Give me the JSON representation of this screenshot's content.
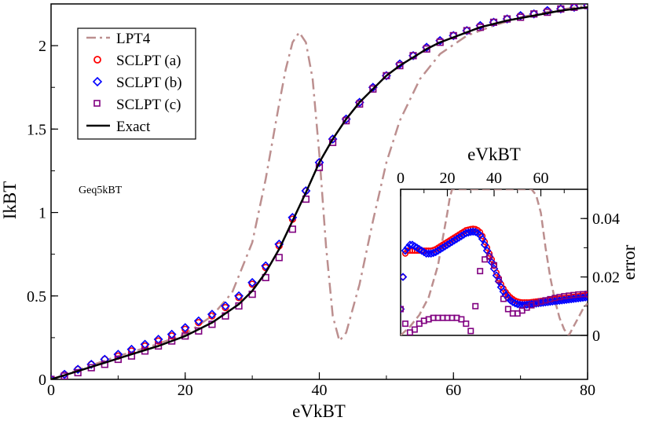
{
  "chart_data": [
    {
      "type": "line",
      "title": "",
      "xlabel": "eVkBT",
      "ylabel": "IkBT",
      "xlim": [
        0,
        80
      ],
      "ylim": [
        0,
        2.25
      ],
      "xticks": [
        "0",
        "20",
        "40",
        "60",
        "80"
      ],
      "yticks": [
        "0",
        "0.5",
        "1",
        "1.5",
        "2"
      ],
      "annotation": "Geq5kBT",
      "legend_position": "top-left",
      "series": [
        {
          "name": "LPT4",
          "style": "dashed",
          "color": "#bc8f8f",
          "x": [
            0,
            5,
            10,
            15,
            20,
            24,
            27,
            30,
            32,
            34,
            35,
            36,
            37,
            38,
            39,
            40,
            41,
            42,
            43,
            44,
            46,
            48,
            50,
            52,
            55,
            58,
            62,
            66,
            70,
            75,
            80
          ],
          "y": [
            0,
            0.07,
            0.14,
            0.2,
            0.27,
            0.38,
            0.52,
            0.82,
            1.2,
            1.65,
            1.86,
            2.02,
            2.08,
            2.02,
            1.8,
            1.35,
            0.8,
            0.38,
            0.23,
            0.28,
            0.57,
            0.95,
            1.3,
            1.55,
            1.8,
            1.95,
            2.06,
            2.12,
            2.17,
            2.21,
            2.24
          ]
        },
        {
          "name": "SCLPT (a)",
          "style": "circle",
          "color": "#ff0000",
          "x": [
            0,
            2,
            4,
            6,
            8,
            10,
            12,
            14,
            16,
            18,
            20,
            22,
            24,
            26,
            28,
            30,
            32,
            34,
            36,
            38,
            40,
            42,
            44,
            46,
            48,
            50,
            52,
            54,
            56,
            58,
            60,
            62,
            64,
            66,
            68,
            70,
            72,
            74,
            76,
            78,
            80
          ],
          "y": [
            0,
            0.03,
            0.06,
            0.09,
            0.12,
            0.14,
            0.17,
            0.2,
            0.23,
            0.26,
            0.3,
            0.34,
            0.38,
            0.43,
            0.49,
            0.57,
            0.67,
            0.8,
            0.96,
            1.13,
            1.3,
            1.44,
            1.56,
            1.66,
            1.75,
            1.82,
            1.89,
            1.94,
            1.99,
            2.03,
            2.06,
            2.09,
            2.12,
            2.14,
            2.16,
            2.18,
            2.19,
            2.21,
            2.22,
            2.23,
            2.24
          ]
        },
        {
          "name": "SCLPT (b)",
          "style": "diamond",
          "color": "#0000ff",
          "x": [
            0,
            2,
            4,
            6,
            8,
            10,
            12,
            14,
            16,
            18,
            20,
            22,
            24,
            26,
            28,
            30,
            32,
            34,
            36,
            38,
            40,
            42,
            44,
            46,
            48,
            50,
            52,
            54,
            56,
            58,
            60,
            62,
            64,
            66,
            68,
            70,
            72,
            74,
            76,
            78,
            80
          ],
          "y": [
            0,
            0.03,
            0.06,
            0.09,
            0.12,
            0.15,
            0.18,
            0.21,
            0.24,
            0.27,
            0.31,
            0.35,
            0.39,
            0.44,
            0.5,
            0.58,
            0.68,
            0.81,
            0.97,
            1.13,
            1.3,
            1.44,
            1.56,
            1.66,
            1.75,
            1.82,
            1.89,
            1.94,
            1.99,
            2.03,
            2.06,
            2.09,
            2.12,
            2.14,
            2.16,
            2.18,
            2.19,
            2.21,
            2.22,
            2.23,
            2.24
          ]
        },
        {
          "name": "SCLPT (c)",
          "style": "square",
          "color": "#800080",
          "x": [
            0,
            2,
            4,
            6,
            8,
            10,
            12,
            14,
            16,
            18,
            20,
            22,
            24,
            26,
            28,
            30,
            32,
            34,
            36,
            38,
            40,
            42,
            44,
            46,
            48,
            50,
            52,
            54,
            56,
            58,
            60,
            62,
            64,
            66,
            68,
            70,
            72,
            74,
            76,
            78,
            80
          ],
          "y": [
            0,
            0.02,
            0.04,
            0.07,
            0.09,
            0.12,
            0.14,
            0.17,
            0.2,
            0.23,
            0.26,
            0.29,
            0.33,
            0.38,
            0.44,
            0.51,
            0.61,
            0.73,
            0.9,
            1.08,
            1.27,
            1.42,
            1.55,
            1.65,
            1.74,
            1.82,
            1.88,
            1.94,
            1.98,
            2.02,
            2.06,
            2.09,
            2.11,
            2.14,
            2.16,
            2.17,
            2.19,
            2.2,
            2.22,
            2.23,
            2.24
          ]
        },
        {
          "name": "Exact",
          "style": "solid",
          "color": "#000000",
          "x": [
            0,
            4,
            8,
            12,
            16,
            20,
            24,
            28,
            30,
            32,
            34,
            36,
            38,
            40,
            42,
            44,
            46,
            48,
            50,
            52,
            54,
            56,
            58,
            60,
            64,
            68,
            72,
            76,
            80
          ],
          "y": [
            0,
            0.05,
            0.1,
            0.15,
            0.2,
            0.26,
            0.34,
            0.45,
            0.53,
            0.64,
            0.78,
            0.95,
            1.12,
            1.3,
            1.44,
            1.56,
            1.66,
            1.74,
            1.82,
            1.88,
            1.93,
            1.98,
            2.02,
            2.05,
            2.11,
            2.15,
            2.18,
            2.21,
            2.23
          ]
        }
      ]
    },
    {
      "type": "scatter",
      "title": "",
      "xlabel": "eVkBT",
      "ylabel": "error",
      "xlim": [
        0,
        80
      ],
      "ylim": [
        0,
        0.05
      ],
      "xticks": [
        "0",
        "20",
        "40",
        "60"
      ],
      "yticks": [
        "0",
        "0.02",
        "0.04"
      ],
      "series": [
        {
          "name": "LPT4",
          "style": "dashed",
          "color": "#bc8f8f",
          "x": [
            0,
            4,
            8,
            12,
            16,
            18,
            20,
            21,
            22,
            24,
            28,
            34,
            40,
            46,
            52,
            56,
            58,
            60,
            62,
            64,
            66,
            68,
            70,
            72,
            74,
            76,
            78,
            80
          ],
          "y": [
            0,
            0.003,
            0.007,
            0.013,
            0.024,
            0.033,
            0.042,
            0.047,
            0.05,
            0.05,
            0.05,
            0.05,
            0.05,
            0.05,
            0.05,
            0.05,
            0.048,
            0.042,
            0.03,
            0.02,
            0.012,
            0.006,
            0.002,
            0,
            0.003,
            0.006,
            0.009,
            0.011
          ]
        },
        {
          "name": "SCLPT (a)",
          "style": "circle",
          "color": "#ff0000",
          "x": [
            0,
            1,
            2,
            3,
            4,
            5,
            6,
            7,
            8,
            9,
            10,
            11,
            12,
            13,
            14,
            15,
            16,
            17,
            18,
            19,
            20,
            21,
            22,
            23,
            24,
            25,
            26,
            27,
            28,
            29,
            30,
            31,
            32,
            33,
            34,
            35,
            36,
            37,
            38,
            39,
            40,
            41,
            42,
            43,
            44,
            45,
            46,
            47,
            48,
            49,
            50,
            51,
            52,
            53,
            54,
            55,
            56,
            57,
            58,
            59,
            60,
            61,
            62,
            63,
            64,
            65,
            66,
            67,
            68,
            69,
            70,
            71,
            72,
            73,
            74,
            75,
            76,
            77,
            78,
            79,
            80
          ],
          "y": [
            0.009,
            0.02,
            0.028,
            0.029,
            0.029,
            0.029,
            0.029,
            0.029,
            0.029,
            0.029,
            0.029,
            0.029,
            0.029,
            0.029,
            0.0292,
            0.0295,
            0.03,
            0.0305,
            0.031,
            0.0315,
            0.032,
            0.0325,
            0.033,
            0.0335,
            0.034,
            0.0345,
            0.035,
            0.0355,
            0.036,
            0.0362,
            0.0364,
            0.0365,
            0.0364,
            0.036,
            0.0353,
            0.034,
            0.032,
            0.03,
            0.028,
            0.026,
            0.0238,
            0.0215,
            0.0195,
            0.0175,
            0.016,
            0.0148,
            0.0138,
            0.013,
            0.0124,
            0.0119,
            0.0116,
            0.0114,
            0.0113,
            0.0113,
            0.0113,
            0.0113,
            0.0114,
            0.0115,
            0.0116,
            0.0117,
            0.0118,
            0.0119,
            0.012,
            0.0121,
            0.0122,
            0.0123,
            0.0124,
            0.0125,
            0.0126,
            0.0127,
            0.0128,
            0.0129,
            0.013,
            0.0131,
            0.0132,
            0.0133,
            0.0134,
            0.0135,
            0.0136,
            0.0137,
            0.0138
          ]
        },
        {
          "name": "SCLPT (b)",
          "style": "diamond",
          "color": "#0000ff",
          "x": [
            0,
            1,
            2,
            3,
            4,
            5,
            6,
            7,
            8,
            9,
            10,
            11,
            12,
            13,
            14,
            15,
            16,
            17,
            18,
            19,
            20,
            21,
            22,
            23,
            24,
            25,
            26,
            27,
            28,
            29,
            30,
            31,
            32,
            33,
            34,
            35,
            36,
            37,
            38,
            39,
            40,
            41,
            42,
            43,
            44,
            45,
            46,
            47,
            48,
            49,
            50,
            51,
            52,
            53,
            54,
            55,
            56,
            57,
            58,
            59,
            60,
            61,
            62,
            63,
            64,
            65,
            66,
            67,
            68,
            69,
            70,
            71,
            72,
            73,
            74,
            75,
            76,
            77,
            78,
            79,
            80
          ],
          "y": [
            0.009,
            0.02,
            0.029,
            0.03,
            0.031,
            0.031,
            0.0305,
            0.03,
            0.0295,
            0.029,
            0.0285,
            0.028,
            0.028,
            0.028,
            0.0282,
            0.0285,
            0.029,
            0.0295,
            0.03,
            0.0305,
            0.031,
            0.0315,
            0.032,
            0.0325,
            0.033,
            0.0335,
            0.034,
            0.0345,
            0.035,
            0.0352,
            0.0354,
            0.0355,
            0.0354,
            0.035,
            0.0343,
            0.033,
            0.031,
            0.029,
            0.027,
            0.025,
            0.0228,
            0.0205,
            0.0185,
            0.0165,
            0.015,
            0.0138,
            0.0128,
            0.012,
            0.0114,
            0.011,
            0.0107,
            0.0105,
            0.0104,
            0.0104,
            0.0105,
            0.0106,
            0.0107,
            0.0108,
            0.0109,
            0.011,
            0.0111,
            0.0112,
            0.0113,
            0.0114,
            0.0115,
            0.0116,
            0.0117,
            0.0118,
            0.0119,
            0.012,
            0.0121,
            0.0122,
            0.0123,
            0.0124,
            0.0125,
            0.0126,
            0.0127,
            0.0128,
            0.0129,
            0.013,
            0.0131
          ]
        },
        {
          "name": "SCLPT (c)",
          "style": "square",
          "color": "#800080",
          "x": [
            0,
            2,
            4,
            6,
            8,
            10,
            12,
            14,
            16,
            18,
            20,
            22,
            24,
            26,
            28,
            30,
            32,
            34,
            36,
            38,
            40,
            42,
            44,
            46,
            48,
            50,
            52,
            54,
            56,
            58,
            60,
            62,
            64,
            66,
            68,
            70,
            72,
            74,
            76,
            78,
            80
          ],
          "y": [
            0.009,
            0.004,
            0.001,
            0.002,
            0.004,
            0.005,
            0.0055,
            0.006,
            0.006,
            0.006,
            0.006,
            0.006,
            0.006,
            0.0055,
            0.004,
            0.0015,
            0.01,
            0.022,
            0.026,
            0.027,
            0.024,
            0.019,
            0.0125,
            0.009,
            0.0075,
            0.0075,
            0.0085,
            0.0095,
            0.0103,
            0.011,
            0.0116,
            0.012,
            0.0124,
            0.0128,
            0.0131,
            0.0134,
            0.0136,
            0.0138,
            0.014,
            0.0141,
            0.0142
          ]
        }
      ]
    }
  ]
}
